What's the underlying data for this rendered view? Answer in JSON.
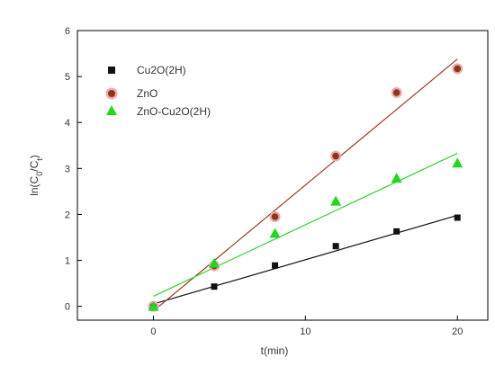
{
  "chart_data": {
    "type": "scatter",
    "xlabel": "t(min)",
    "ylabel": "ln(C0/Ct)",
    "xlim": [
      -5,
      22
    ],
    "ylim": [
      -0.3,
      6
    ],
    "xticks": [
      0,
      10,
      20
    ],
    "yticks": [
      0,
      1,
      2,
      3,
      4,
      5,
      6
    ],
    "grid": false,
    "legend_position": "top-left",
    "series": [
      {
        "name": "Cu2O(2H)",
        "marker": "square",
        "color": "#111111",
        "fit_color": "#111111",
        "x": [
          0,
          4,
          8,
          12,
          16,
          20
        ],
        "y": [
          0.0,
          0.43,
          0.89,
          1.31,
          1.63,
          1.93
        ],
        "fit": [
          [
            0,
            0.05
          ],
          [
            20,
            1.98
          ]
        ]
      },
      {
        "name": "ZnO",
        "marker": "circle",
        "color": "#8a3a12",
        "halo_color": "#f3a6b4",
        "fit_color": "#9a3b22",
        "x": [
          0,
          4,
          8,
          12,
          16,
          20
        ],
        "y": [
          0.0,
          0.88,
          1.95,
          3.27,
          4.65,
          5.17
        ],
        "fit": [
          [
            0,
            -0.1
          ],
          [
            20,
            5.38
          ]
        ]
      },
      {
        "name": "ZnO-Cu2O(2H)",
        "marker": "triangle",
        "color": "#1fd81f",
        "fit_color": "#33d033",
        "x": [
          0,
          4,
          8,
          12,
          16,
          20
        ],
        "y": [
          0.0,
          0.94,
          1.59,
          2.29,
          2.79,
          3.12
        ],
        "fit": [
          [
            0,
            0.22
          ],
          [
            20,
            3.33
          ]
        ]
      }
    ]
  }
}
